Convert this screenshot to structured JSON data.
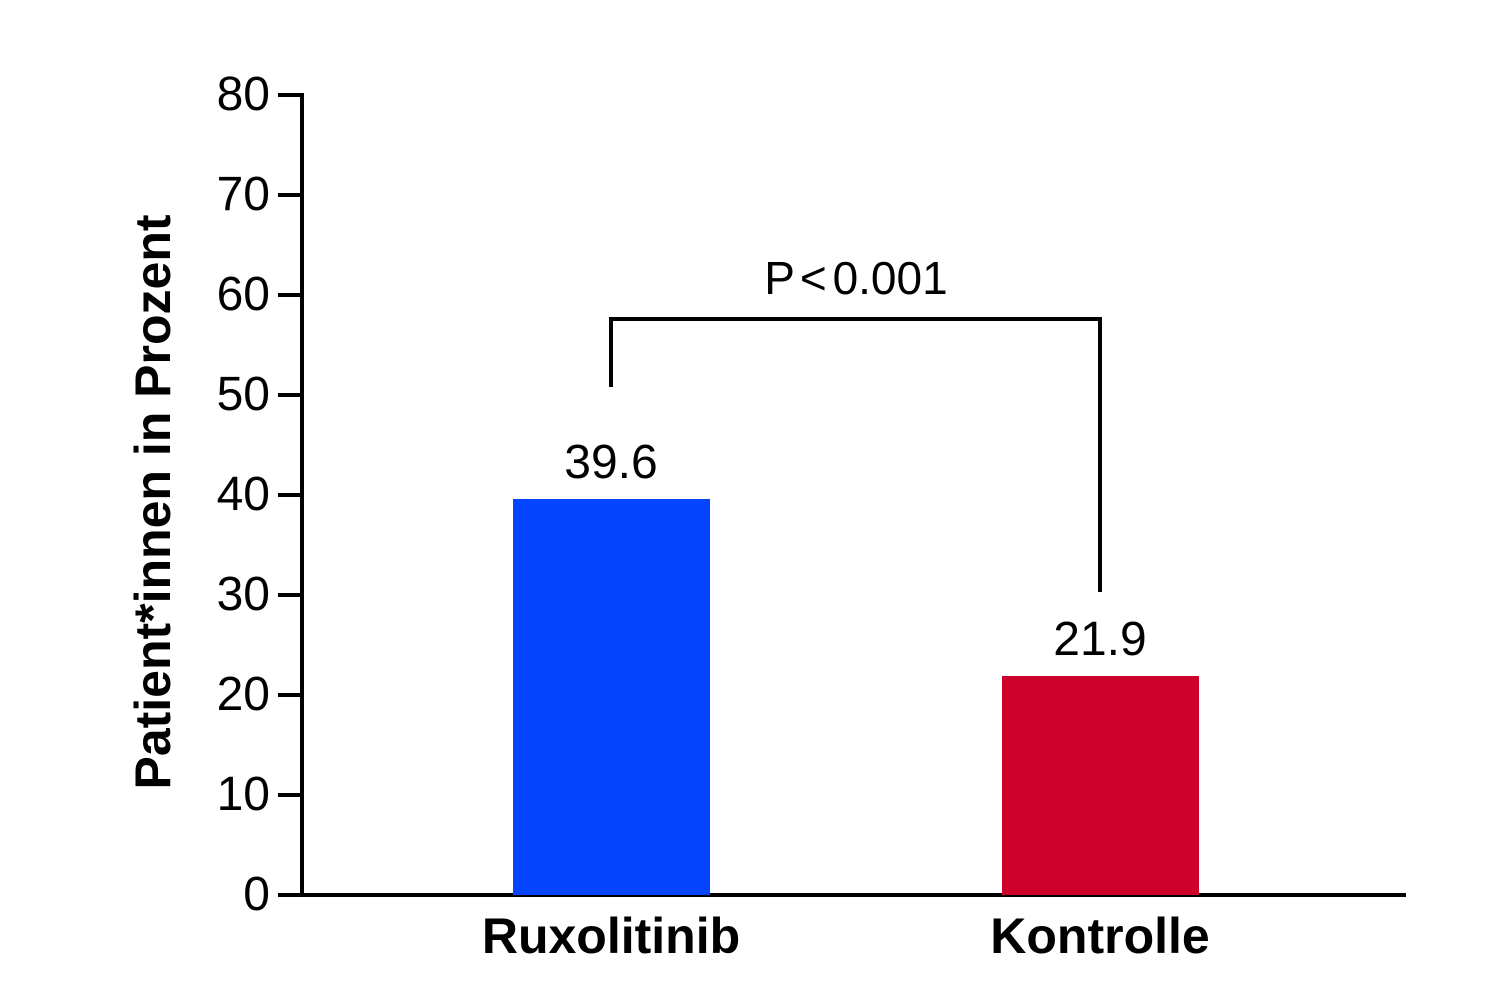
{
  "chart_data": {
    "type": "bar",
    "title": "",
    "categories": [
      "Ruxolitinib",
      "Kontrolle"
    ],
    "values": [
      39.6,
      21.9
    ],
    "value_labels": [
      "39.6",
      "21.9"
    ],
    "bar_colors": [
      "#0444FC",
      "#CE012B"
    ],
    "xlabel": "",
    "ylabel": "Patient*innen in Prozent",
    "yticks": [
      0,
      10,
      20,
      30,
      40,
      50,
      60,
      70,
      80
    ],
    "ylim": [
      0,
      80
    ],
    "grid": "off",
    "legend": "none",
    "axis_color": "#000000",
    "background_color": "#ffffff",
    "annotation": {
      "text": "P < 0.001"
    }
  }
}
